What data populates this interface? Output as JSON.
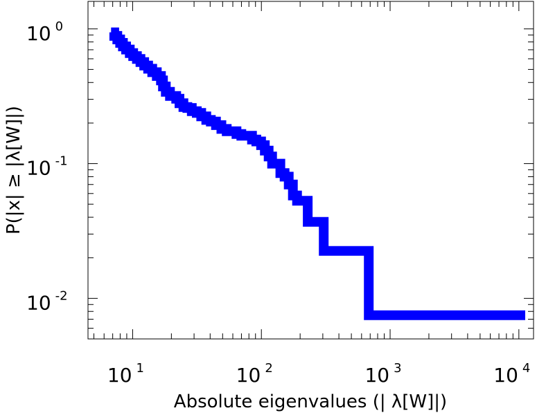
{
  "chart_data": {
    "type": "line",
    "title": "",
    "xlabel": "Absolute eigenvalues (|     λ[W]|)",
    "ylabel": "P(|x|  ≥ |λ[W]|)",
    "xscale": "log",
    "yscale": "log",
    "xlim": [
      4.5,
      13000
    ],
    "ylim": [
      0.005,
      1.6
    ],
    "grid": false,
    "legend": "none",
    "xticks": [
      {
        "value": 10,
        "base": "10",
        "exp": "1"
      },
      {
        "value": 100,
        "base": "10",
        "exp": "2"
      },
      {
        "value": 1000,
        "base": "10",
        "exp": "3"
      },
      {
        "value": 10000,
        "base": "10",
        "exp": "4"
      }
    ],
    "yticks": [
      {
        "value": 1,
        "base": "10",
        "exp": "0"
      },
      {
        "value": 0.1,
        "base": "10",
        "exp": "-1"
      },
      {
        "value": 0.01,
        "base": "10",
        "exp": "-2"
      }
    ],
    "series": [
      {
        "color": "#0000ff",
        "x": [
          6.8,
          7.2,
          7.6,
          8.0,
          8.4,
          8.9,
          9.5,
          10.1,
          10.8,
          11.5,
          12.3,
          13.2,
          14.2,
          15.4,
          16.6,
          17.2,
          18.1,
          19.5,
          20.5,
          21.8,
          23.1,
          24.8,
          26.6,
          28.8,
          31.5,
          34.1,
          37.3,
          40.5,
          44.4,
          48.9,
          53.8,
          59.1,
          64.1,
          69.9,
          76.3,
          84.6,
          91.3,
          99.5,
          106.4,
          113.9,
          121.1,
          130.6,
          140.4,
          151.4,
          163.0,
          175.6,
          189.2,
          203.7,
          229.1,
          246.9,
          304.9,
          677.6,
          682.1,
          11200
        ],
        "y": [
          0.943,
          0.887,
          0.835,
          0.787,
          0.741,
          0.703,
          0.662,
          0.628,
          0.598,
          0.567,
          0.534,
          0.506,
          0.477,
          0.447,
          0.415,
          0.374,
          0.341,
          0.318,
          0.318,
          0.303,
          0.281,
          0.263,
          0.259,
          0.245,
          0.238,
          0.224,
          0.211,
          0.205,
          0.193,
          0.181,
          0.174,
          0.174,
          0.166,
          0.161,
          0.161,
          0.151,
          0.146,
          0.137,
          0.125,
          0.113,
          0.1,
          0.1,
          0.085,
          0.08,
          0.07,
          0.058,
          0.053,
          0.053,
          0.037,
          0.037,
          0.0225,
          0.0225,
          0.0075,
          0.0075
        ]
      }
    ]
  }
}
